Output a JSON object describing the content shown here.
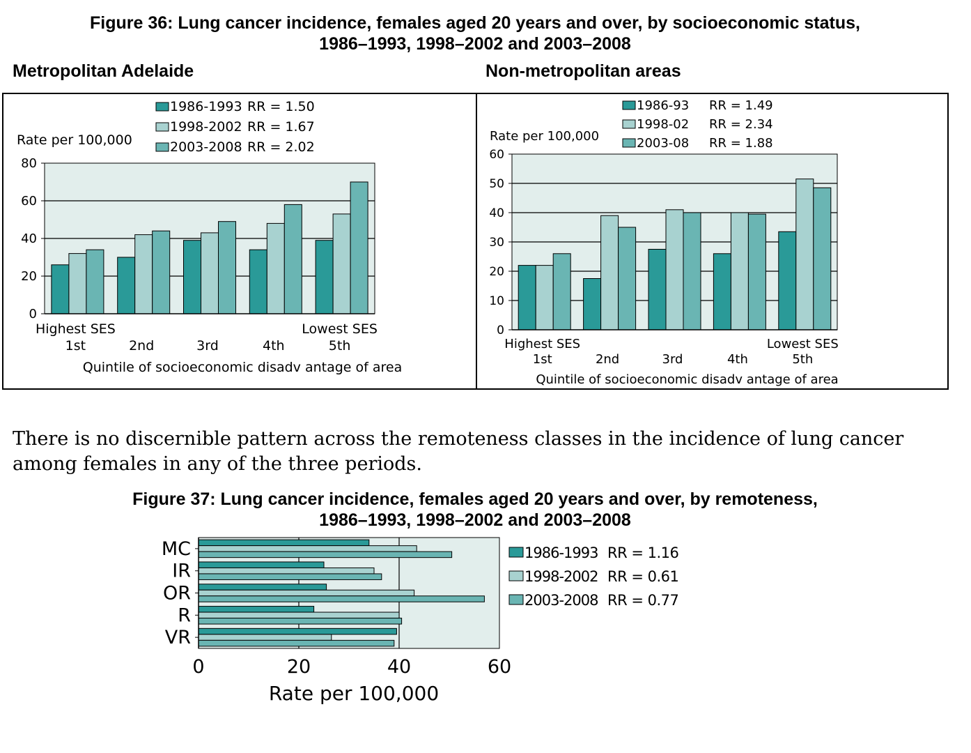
{
  "figure36": {
    "title_line1": "Figure 36: Lung cancer incidence, females aged 20 years and over, by socioeconomic status,",
    "title_line2": "1986–1993, 1998–2002 and 2003–2008"
  },
  "figure37": {
    "title_line1": "Figure 37: Lung cancer incidence, females aged 20 years and over, by remoteness,",
    "title_line2": "1986–1993, 1998–2002 and 2003–2008"
  },
  "paragraph": "There is no discernible pattern across the remoteness classes in the incidence of lung cancer among females in any of the three periods.",
  "colors": {
    "period1": "#2a9a98",
    "period2": "#a8d2d0",
    "period3": "#6ab5b3",
    "plot_bg": "#e2eeec"
  },
  "chart_data": [
    {
      "type": "bar",
      "panel_title": "Metropolitan Adelaide",
      "ylabel": "Rate per 100,000",
      "xlabel": "Quintile of socioeconomic disadv antage of area",
      "categories": [
        "1st",
        "2nd",
        "3rd",
        "4th",
        "5th"
      ],
      "end_labels": [
        "Highest SES",
        "Lowest SES"
      ],
      "ylim": [
        0,
        80
      ],
      "yticks": [
        0,
        20,
        40,
        60,
        80
      ],
      "grid": true,
      "legend_position": "top",
      "series": [
        {
          "name": "1986-1993",
          "rr": "RR = 1.50",
          "values": [
            26,
            30,
            39,
            34,
            39
          ]
        },
        {
          "name": "1998-2002",
          "rr": "RR = 1.67",
          "values": [
            32,
            42,
            43,
            48,
            53
          ]
        },
        {
          "name": "2003-2008",
          "rr": "RR = 2.02",
          "values": [
            34,
            44,
            49,
            58,
            70
          ]
        }
      ]
    },
    {
      "type": "bar",
      "panel_title": "Non-metropolitan areas",
      "ylabel": "Rate per 100,000",
      "xlabel": "Quintile of socioeconomic disadv antage of area",
      "categories": [
        "1st",
        "2nd",
        "3rd",
        "4th",
        "5th"
      ],
      "end_labels": [
        "Highest SES",
        "Lowest SES"
      ],
      "ylim": [
        0,
        60
      ],
      "yticks": [
        0,
        10,
        20,
        30,
        40,
        50,
        60
      ],
      "grid": true,
      "legend_position": "top",
      "series": [
        {
          "name": "1986-93",
          "rr": "RR = 1.49",
          "values": [
            22,
            17.5,
            27.5,
            26,
            33.5
          ]
        },
        {
          "name": "1998-02",
          "rr": "RR = 2.34",
          "values": [
            22,
            39,
            41,
            40,
            51.5
          ]
        },
        {
          "name": "2003-08",
          "rr": "RR = 1.88",
          "values": [
            26,
            35,
            40,
            39.5,
            48.5
          ]
        }
      ]
    },
    {
      "type": "bar",
      "orientation": "horizontal",
      "xlabel": "Rate per 100,000",
      "categories": [
        "MC",
        "IR",
        "OR",
        "R",
        "VR"
      ],
      "xlim": [
        0,
        60
      ],
      "xticks": [
        0,
        20,
        40,
        60
      ],
      "grid": true,
      "legend_position": "right",
      "series": [
        {
          "name": "1986-1993",
          "rr": "RR = 1.16",
          "values": [
            34,
            25,
            25.5,
            23,
            39.5
          ]
        },
        {
          "name": "1998-2002",
          "rr": "RR = 0.61",
          "values": [
            43.5,
            35,
            43,
            40,
            26.5
          ]
        },
        {
          "name": "2003-2008",
          "rr": "RR = 0.77",
          "values": [
            50.5,
            36.5,
            57,
            40.5,
            39
          ]
        }
      ]
    }
  ]
}
